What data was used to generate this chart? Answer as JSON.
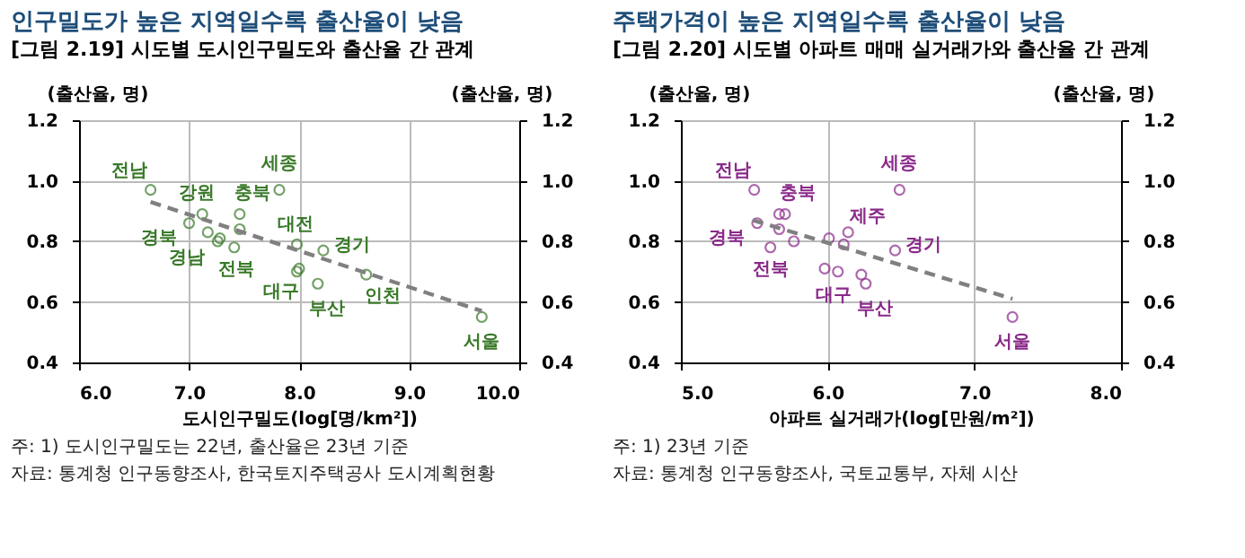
{
  "chart_data": [
    {
      "type": "scatter",
      "title": "인구밀도가 높은 지역일수록 출산율이 낮음",
      "subtitle": "[그림 2.19] 시도별 도시인구밀도와 출산율 간 관계",
      "xlabel": "도시인구밀도(log[명/km²])",
      "ylabel": "(출산율, 명)",
      "y2label": "(출산율, 명)",
      "xlim": [
        6,
        10
      ],
      "xticks": [
        {
          "value": 6,
          "label": "6.0"
        },
        {
          "value": 7,
          "label": "7.0"
        },
        {
          "value": 8,
          "label": "8.0"
        },
        {
          "value": 9,
          "label": "9.0"
        },
        {
          "value": 10,
          "label": "10.0"
        }
      ],
      "ylim": [
        0.4,
        1.2
      ],
      "yticks": [
        0.4,
        0.6,
        0.8,
        {
          "value": 1,
          "label": "1.0"
        },
        1.2
      ],
      "y2lim": [
        0.4,
        1.2
      ],
      "y2ticks": [
        0.4,
        0.6,
        0.8,
        {
          "value": 1,
          "label": "1.0"
        },
        1.2
      ],
      "grid": true,
      "series": [
        {
          "type": "scatter",
          "color": "#3a7a2a",
          "marker": "circle",
          "x": [
            6.65,
            7.12,
            7.0,
            7.17,
            7.28,
            7.26,
            7.41,
            7.46,
            7.46,
            7.82,
            7.98,
            8.0,
            7.98,
            8.17,
            8.22,
            8.61,
            9.66
          ],
          "values": [
            0.97,
            0.89,
            0.86,
            0.83,
            0.81,
            0.8,
            0.78,
            0.89,
            0.84,
            0.97,
            0.79,
            0.71,
            0.7,
            0.66,
            0.77,
            0.69,
            0.55
          ]
        },
        {
          "type": "line",
          "color": "#808080",
          "marker": "none",
          "line_style": "dashed",
          "x": [
            6.65,
            9.66
          ],
          "values": [
            0.93,
            0.57
          ]
        }
      ],
      "annotations": [
        {
          "text": "전남",
          "x": 6.65,
          "y": 0.97
        },
        {
          "text": "강원",
          "x": 7.12,
          "y": 0.89
        },
        {
          "text": "충북",
          "x": 7.46,
          "y": 0.89
        },
        {
          "text": "세종",
          "x": 7.82,
          "y": 0.97
        },
        {
          "text": "경북",
          "x": 7.0,
          "y": 0.86
        },
        {
          "text": "경남",
          "x": 7.26,
          "y": 0.8
        },
        {
          "text": "전북",
          "x": 7.41,
          "y": 0.78
        },
        {
          "text": "대전",
          "x": 7.98,
          "y": 0.79
        },
        {
          "text": "경기",
          "x": 8.22,
          "y": 0.77
        },
        {
          "text": "대구",
          "x": 7.98,
          "y": 0.7
        },
        {
          "text": "부산",
          "x": 8.17,
          "y": 0.66
        },
        {
          "text": "인천",
          "x": 8.61,
          "y": 0.69
        },
        {
          "text": "서울",
          "x": 9.66,
          "y": 0.55
        },
        "주: 1) 도시인구밀도는 22년, 출산율은 23년 기준",
        "자료: 통계청 인구동향조사, 한국토지주택공사 도시계획현황"
      ]
    },
    {
      "type": "scatter",
      "title": "주택가격이 높은 지역일수록 출산율이 낮음",
      "subtitle": "[그림 2.20] 시도별 아파트 매매 실거래가와 출산율 간 관계",
      "xlabel": "아파트 실거래가(log[만원/m²])",
      "ylabel": "(출산율, 명)",
      "y2label": "(출산율, 명)",
      "xlim": [
        5,
        8
      ],
      "xticks": [
        {
          "value": 5,
          "label": "5.0"
        },
        {
          "value": 6,
          "label": "6.0"
        },
        {
          "value": 7,
          "label": "7.0"
        },
        {
          "value": 8,
          "label": "8.0"
        }
      ],
      "ylim": [
        0.4,
        1.2
      ],
      "yticks": [
        0.4,
        0.6,
        0.8,
        {
          "value": 1,
          "label": "1.0"
        },
        1.2
      ],
      "y2lim": [
        0.4,
        1.2
      ],
      "y2ticks": [
        0.4,
        0.6,
        0.8,
        {
          "value": 1,
          "label": "1.0"
        },
        1.2
      ],
      "grid": true,
      "series": [
        {
          "type": "scatter",
          "color": "#8a2a8a",
          "marker": "circle",
          "x": [
            5.5,
            5.52,
            5.67,
            5.71,
            5.67,
            5.61,
            5.77,
            6.01,
            6.11,
            6.14,
            5.98,
            6.07,
            6.23,
            6.26,
            6.46,
            6.49,
            7.26
          ],
          "values": [
            0.97,
            0.86,
            0.89,
            0.89,
            0.84,
            0.78,
            0.8,
            0.81,
            0.79,
            0.83,
            0.71,
            0.7,
            0.69,
            0.66,
            0.77,
            0.97,
            0.55
          ]
        },
        {
          "type": "line",
          "color": "#808080",
          "marker": "none",
          "line_style": "dashed",
          "x": [
            5.49,
            7.26
          ],
          "values": [
            0.87,
            0.61
          ]
        }
      ],
      "annotations": [
        {
          "text": "전남",
          "x": 5.5,
          "y": 0.97
        },
        {
          "text": "충북",
          "x": 5.71,
          "y": 0.89
        },
        {
          "text": "세종",
          "x": 6.49,
          "y": 0.97
        },
        {
          "text": "제주",
          "x": 6.14,
          "y": 0.83
        },
        {
          "text": "경북",
          "x": 5.52,
          "y": 0.86
        },
        {
          "text": "경기",
          "x": 6.46,
          "y": 0.77
        },
        {
          "text": "전북",
          "x": 5.61,
          "y": 0.78
        },
        {
          "text": "대구",
          "x": 5.98,
          "y": 0.71
        },
        {
          "text": "부산",
          "x": 6.26,
          "y": 0.66
        },
        {
          "text": "서울",
          "x": 7.26,
          "y": 0.55
        },
        "주: 1) 23년 기준",
        "자료: 통계청 인구동향조사, 국토교통부, 자체 시산"
      ]
    }
  ]
}
